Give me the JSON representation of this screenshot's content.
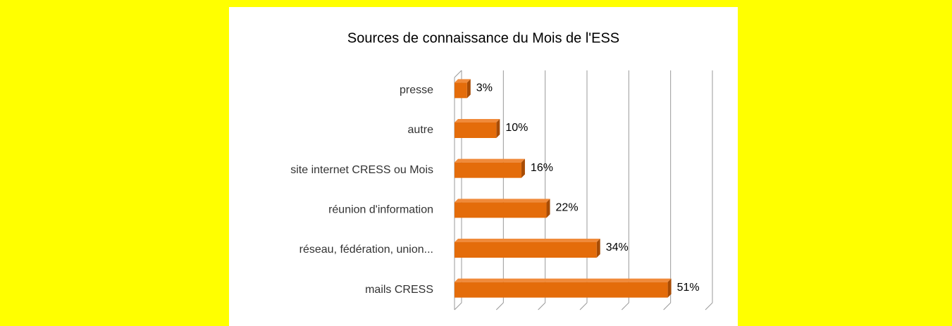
{
  "chart_data": {
    "type": "bar",
    "orientation": "horizontal",
    "title": "Sources de connaissance du Mois de l'ESS",
    "categories": [
      "presse",
      "autre",
      "site internet CRESS ou  Mois",
      "réunion d'information",
      "réseau, fédération, union...",
      "mails CRESS"
    ],
    "values": [
      3,
      10,
      16,
      22,
      34,
      51
    ],
    "value_labels": [
      "3%",
      "10%",
      "16%",
      "22%",
      "34%",
      "51%"
    ],
    "color": "#e46c0a",
    "xlim": [
      0,
      60
    ],
    "xticks": [
      0,
      10,
      20,
      30,
      40,
      50,
      60
    ],
    "grid": true
  }
}
